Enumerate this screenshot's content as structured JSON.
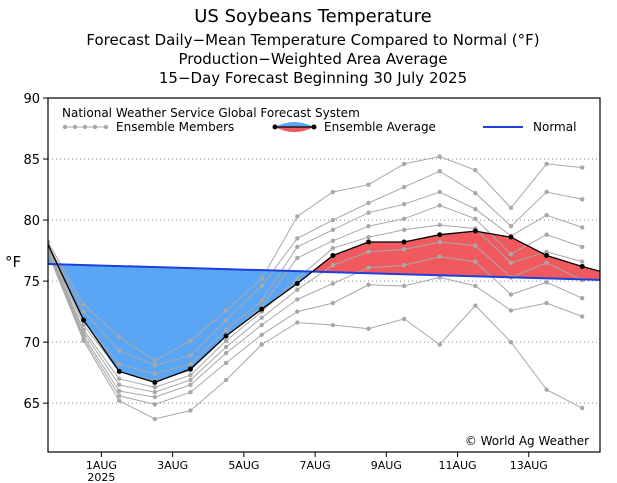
{
  "chart_data": {
    "type": "line",
    "title": "US Soybeans Temperature",
    "subtitle_lines": [
      "Forecast Daily−Mean Temperature Compared to Normal (°F)",
      "Production−Weighted Area Average",
      "15−Day Forecast Beginning 30 July 2025"
    ],
    "ylabel": "°F",
    "ylim": [
      61,
      90
    ],
    "yticks": [
      65,
      70,
      75,
      80,
      85,
      90
    ],
    "xlim": [
      -0.5,
      15.0
    ],
    "x_tick_labels": [
      {
        "x": 1,
        "label": "1AUG",
        "sub": "2025"
      },
      {
        "x": 3,
        "label": "3AUG"
      },
      {
        "x": 5,
        "label": "5AUG"
      },
      {
        "x": 7,
        "label": "7AUG"
      },
      {
        "x": 9,
        "label": "9AUG"
      },
      {
        "x": 11,
        "label": "11AUG"
      },
      {
        "x": 13,
        "label": "13AUG"
      }
    ],
    "grid": true,
    "legend_title": "National Weather Service Global Forecast System",
    "legend": [
      "Ensemble Members",
      "Ensemble Average",
      "Normal"
    ],
    "credit": "© World Ag Weather",
    "colors": {
      "above_normal": "#f0595e",
      "below_normal": "#5aa6f5",
      "normal": "#1f3fdc",
      "average": "#000000",
      "members": "#a8a8a8"
    },
    "normal": {
      "x": [
        -0.5,
        15.0
      ],
      "values": [
        76.4,
        75.1
      ]
    },
    "ensemble_average": {
      "x": [
        -0.5,
        0.5,
        1.5,
        2.5,
        3.5,
        4.5,
        5.5,
        6.5,
        7.5,
        8.5,
        9.5,
        10.5,
        11.5,
        12.5,
        13.5,
        14.5,
        15.0
      ],
      "values": [
        78.0,
        71.8,
        67.6,
        66.7,
        67.8,
        70.5,
        72.7,
        74.8,
        77.1,
        78.2,
        78.2,
        78.8,
        79.1,
        78.6,
        77.1,
        76.2,
        75.8
      ]
    },
    "ensemble_members": {
      "x": [
        -0.5,
        0.5,
        1.5,
        2.5,
        3.5,
        4.5,
        5.5,
        6.5,
        7.5,
        8.5,
        9.5,
        10.5,
        11.5,
        12.5,
        13.5,
        14.5
      ],
      "series": [
        [
          78.2,
          73.1,
          70.4,
          68.5,
          70.1,
          72.6,
          75.2,
          80.3,
          82.3,
          82.9,
          84.6,
          85.2,
          84.1,
          81.0,
          84.6,
          84.3
        ],
        [
          78.0,
          72.5,
          69.3,
          68.1,
          68.9,
          71.8,
          74.6,
          78.5,
          80.0,
          81.4,
          82.7,
          84.0,
          82.2,
          79.5,
          82.3,
          81.7
        ],
        [
          77.9,
          71.7,
          68.2,
          67.4,
          68.2,
          71.0,
          73.4,
          77.8,
          79.2,
          80.6,
          81.3,
          82.3,
          80.9,
          78.7,
          80.4,
          79.4
        ],
        [
          77.8,
          71.4,
          67.6,
          66.8,
          67.7,
          70.5,
          72.9,
          76.9,
          78.3,
          79.5,
          80.1,
          81.2,
          80.1,
          77.2,
          78.8,
          77.8
        ],
        [
          77.7,
          71.0,
          67.0,
          66.3,
          67.3,
          70.1,
          72.5,
          75.2,
          77.7,
          78.6,
          79.2,
          79.6,
          79.3,
          76.5,
          77.4,
          76.6
        ],
        [
          77.6,
          70.8,
          66.5,
          65.9,
          66.9,
          69.6,
          72.0,
          74.3,
          76.3,
          77.4,
          77.6,
          78.2,
          77.9,
          75.3,
          76.5,
          75.1
        ],
        [
          77.6,
          70.5,
          66.0,
          65.5,
          66.5,
          69.1,
          71.4,
          73.5,
          74.8,
          76.1,
          76.3,
          77.0,
          76.6,
          73.9,
          74.9,
          73.6
        ],
        [
          77.5,
          70.3,
          65.6,
          64.9,
          65.9,
          68.3,
          70.6,
          72.5,
          73.2,
          74.7,
          74.6,
          75.3,
          74.6,
          72.6,
          73.2,
          72.1
        ],
        [
          77.3,
          70.1,
          65.2,
          63.7,
          64.4,
          66.9,
          69.8,
          71.6,
          71.4,
          71.1,
          71.9,
          69.8,
          73.0,
          70.0,
          66.1,
          64.6
        ]
      ]
    }
  }
}
